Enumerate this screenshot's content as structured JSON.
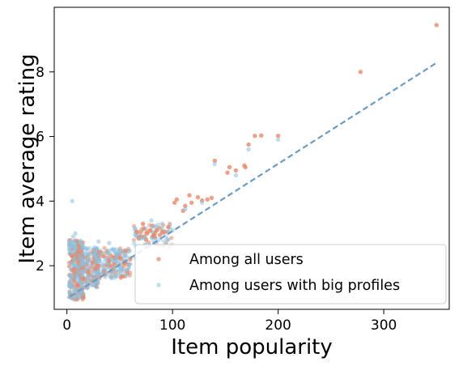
{
  "chart_data": {
    "type": "scatter",
    "xlabel": "Item popularity",
    "ylabel": "Item average rating",
    "xlim": [
      -12,
      362
    ],
    "ylim": [
      0.65,
      10.0
    ],
    "xticks": [
      0,
      100,
      200,
      300
    ],
    "yticks": [
      2,
      4,
      6,
      8
    ],
    "grid": false,
    "legend": {
      "placement": "lower-right"
    },
    "colors": {
      "series_all": "#e8896a",
      "series_big": "#8cc1e0",
      "trend": "#6b9bc3"
    },
    "series": [
      {
        "name": "Among all users",
        "points": [
          [
            350,
            9.45
          ],
          [
            278,
            8.0
          ],
          [
            200,
            6.02
          ],
          [
            184,
            6.03
          ],
          [
            178,
            6.02
          ],
          [
            172,
            5.75
          ],
          [
            168,
            5.1
          ],
          [
            169,
            5.05
          ],
          [
            154,
            5.05
          ],
          [
            160,
            4.95
          ],
          [
            152,
            4.88
          ],
          [
            140,
            5.25
          ],
          [
            137,
            4.1
          ],
          [
            133,
            4.05
          ],
          [
            128,
            4.02
          ],
          [
            124,
            4.12
          ],
          [
            118,
            3.95
          ],
          [
            116,
            4.18
          ],
          [
            112,
            3.85
          ],
          [
            110,
            3.7
          ],
          [
            104,
            4.05
          ],
          [
            102,
            3.95
          ],
          [
            96,
            3.2
          ],
          [
            93,
            3.05
          ],
          [
            90,
            3.05
          ],
          [
            88,
            2.95
          ],
          [
            85,
            3.1
          ],
          [
            82,
            2.95
          ],
          [
            79,
            3.1
          ],
          [
            76,
            3.0
          ],
          [
            73,
            3.15
          ],
          [
            70,
            2.9
          ],
          [
            68,
            2.85
          ],
          [
            66,
            3.05
          ],
          [
            75,
            2.8
          ],
          [
            72,
            3.3
          ],
          [
            60,
            2.2
          ],
          [
            55,
            2.1
          ],
          [
            50,
            2.25
          ],
          [
            45,
            2.05
          ],
          [
            40,
            2.15
          ],
          [
            35,
            2.3
          ],
          [
            30,
            2.0
          ],
          [
            27,
            1.9
          ],
          [
            24,
            2.1
          ],
          [
            20,
            1.8
          ],
          [
            15,
            1.6
          ],
          [
            10,
            1.4
          ],
          [
            7,
            1.9
          ],
          [
            5,
            2.3
          ]
        ]
      },
      {
        "name": "Among users with big profiles",
        "points": [
          [
            5,
            4.0
          ],
          [
            200,
            5.9
          ],
          [
            172,
            5.6
          ],
          [
            160,
            4.8
          ],
          [
            140,
            5.15
          ],
          [
            128,
            3.95
          ],
          [
            112,
            3.75
          ],
          [
            96,
            3.05
          ],
          [
            90,
            3.3
          ],
          [
            80,
            3.4
          ],
          [
            100,
            3.1
          ],
          [
            70,
            2.85
          ],
          [
            65,
            2.25
          ],
          [
            60,
            2.05
          ],
          [
            55,
            2.3
          ],
          [
            50,
            2.0
          ],
          [
            46,
            1.85
          ],
          [
            42,
            2.2
          ],
          [
            38,
            2.45
          ],
          [
            34,
            2.0
          ],
          [
            30,
            1.75
          ],
          [
            28,
            2.25
          ],
          [
            25,
            2.5
          ],
          [
            22,
            2.0
          ],
          [
            20,
            1.6
          ],
          [
            18,
            1.45
          ],
          [
            16,
            2.1
          ],
          [
            14,
            1.3
          ],
          [
            12,
            1.5
          ],
          [
            10,
            1.15
          ],
          [
            8,
            3.0
          ],
          [
            6,
            2.9
          ],
          [
            5,
            1.0
          ],
          [
            4,
            2.4
          ],
          [
            3,
            1.7
          ],
          [
            25,
            1.4
          ],
          [
            30,
            2.75
          ],
          [
            40,
            2.7
          ]
        ]
      }
    ]
  }
}
